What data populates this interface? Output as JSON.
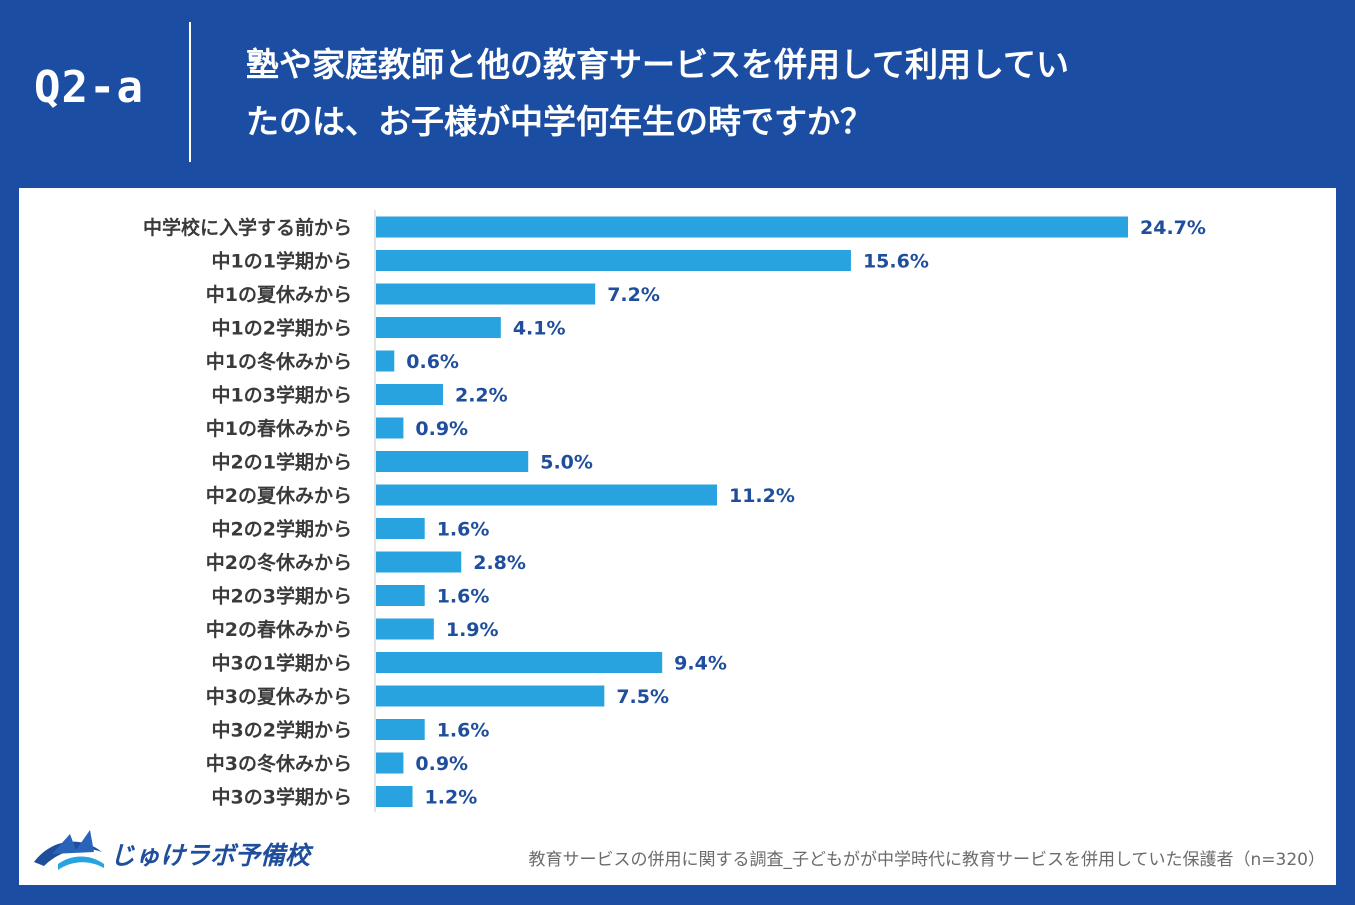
{
  "header": {
    "question_id": "Q2-a",
    "question_line1": "塾や家庭教師と他の教育サービスを併用して利用してい",
    "question_line2": "たのは、お子様が中学何年生の時ですか？"
  },
  "colors": {
    "background": "#1b4ea3",
    "bar": "#29a3e0",
    "value_text": "#1f4e9c",
    "panel": "#ffffff"
  },
  "chart_data": {
    "type": "bar",
    "orientation": "horizontal",
    "categories": [
      "中学校に入学する前から",
      "中1の1学期から",
      "中1の夏休みから",
      "中1の2学期から",
      "中1の冬休みから",
      "中1の3学期から",
      "中1の春休みから",
      "中2の1学期から",
      "中2の夏休みから",
      "中2の2学期から",
      "中2の冬休みから",
      "中2の3学期から",
      "中2の春休みから",
      "中3の1学期から",
      "中3の夏休みから",
      "中3の2学期から",
      "中3の冬休みから",
      "中3の3学期から"
    ],
    "values": [
      24.7,
      15.6,
      7.2,
      4.1,
      0.6,
      2.2,
      0.9,
      5.0,
      11.2,
      1.6,
      2.8,
      1.6,
      1.9,
      9.4,
      7.5,
      1.6,
      0.9,
      1.2
    ],
    "value_labels": [
      "24.7%",
      "15.6%",
      "7.2%",
      "4.1%",
      "0.6%",
      "2.2%",
      "0.9%",
      "5.0%",
      "11.2%",
      "1.6%",
      "2.8%",
      "1.6%",
      "1.9%",
      "9.4%",
      "7.5%",
      "1.6%",
      "0.9%",
      "1.2%"
    ],
    "unit": "%",
    "xlim": [
      0,
      24.7
    ],
    "grid": false,
    "legend": "none"
  },
  "footer": {
    "logo_text": "じゅけラボ予備校",
    "footnote": "教育サービスの併用に関する調査_子どもがが中学時代に教育サービスを併用していた保護者（n=320）"
  }
}
